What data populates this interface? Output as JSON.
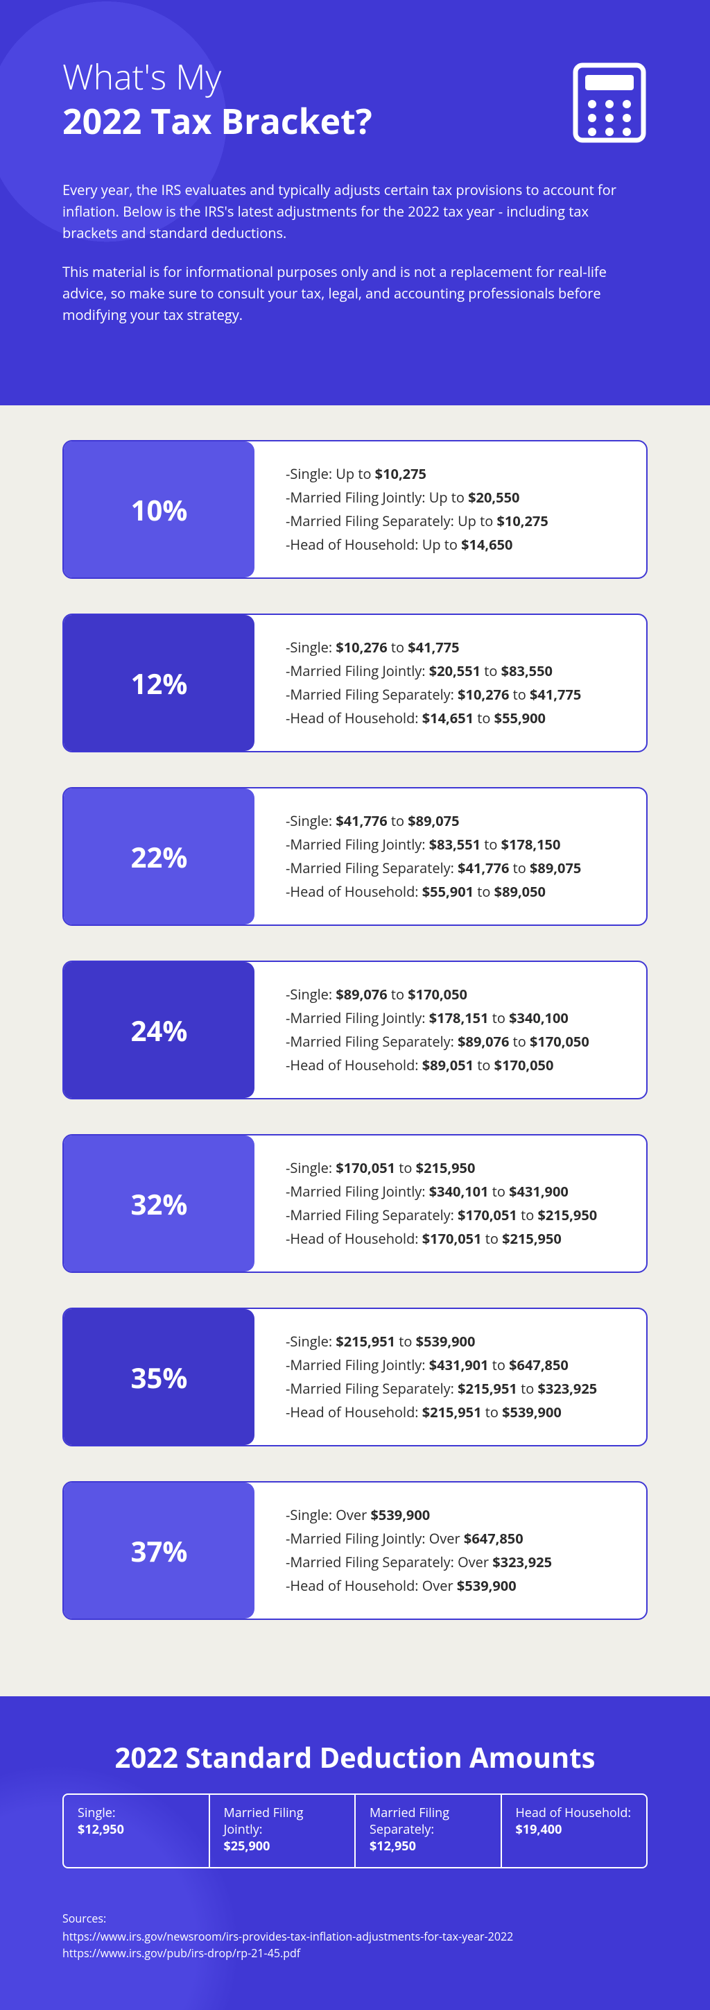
{
  "header": {
    "title_line1": "What's My",
    "title_line2": "2022 Tax Bracket?",
    "intro_p1": "Every year, the IRS evaluates and typically adjusts certain tax provisions to account for inflation. Below is the IRS's latest adjustments for the 2022 tax year - including tax brackets and standard deductions.",
    "intro_p2": "This material is for informational purposes only and is not a replacement for real-life advice, so make sure to consult your tax, legal, and accounting professionals before modifying your tax strategy."
  },
  "colors": {
    "primary": "#4038d4",
    "primary_light": "#5a55e5",
    "card_bg": "#ffffff",
    "page_bg": "#f0efe9",
    "text_dark": "#2a2a2a"
  },
  "brackets": [
    {
      "pct": "10%",
      "pct_bg": "#5a55e5",
      "lines": [
        {
          "label": "-Single: Up to ",
          "b1": "$10,275"
        },
        {
          "label": "-Married Filing Jointly: Up to ",
          "b1": "$20,550"
        },
        {
          "label": "-Married Filing Separately: Up to ",
          "b1": "$10,275"
        },
        {
          "label": "-Head of Household: Up to ",
          "b1": "$14,650"
        }
      ]
    },
    {
      "pct": "12%",
      "pct_bg": "#3f37c9",
      "lines": [
        {
          "label": "-Single: ",
          "b1": "$10,276",
          "mid": " to ",
          "b2": "$41,775"
        },
        {
          "label": "-Married Filing Jointly: ",
          "b1": "$20,551",
          "mid": " to ",
          "b2": "$83,550"
        },
        {
          "label": "-Married Filing Separately: ",
          "b1": "$10,276",
          "mid": " to ",
          "b2": "$41,775"
        },
        {
          "label": "-Head of Household: ",
          "b1": "$14,651",
          "mid": " to ",
          "b2": "$55,900"
        }
      ]
    },
    {
      "pct": "22%",
      "pct_bg": "#5a55e5",
      "lines": [
        {
          "label": "-Single: ",
          "b1": "$41,776",
          "mid": " to ",
          "b2": "$89,075"
        },
        {
          "label": "-Married Filing Jointly: ",
          "b1": "$83,551",
          "mid": " to ",
          "b2": "$178,150"
        },
        {
          "label": "-Married Filing Separately: ",
          "b1": "$41,776",
          "mid": " to ",
          "b2": "$89,075"
        },
        {
          "label": "-Head of Household: ",
          "b1": "$55,901",
          "mid": " to ",
          "b2": "$89,050"
        }
      ]
    },
    {
      "pct": "24%",
      "pct_bg": "#3f37c9",
      "lines": [
        {
          "label": "-Single: ",
          "b1": "$89,076",
          "mid": " to ",
          "b2": "$170,050"
        },
        {
          "label": "-Married Filing Jointly: ",
          "b1": "$178,151",
          "mid": " to ",
          "b2": "$340,100"
        },
        {
          "label": "-Married Filing Separately: ",
          "b1": "$89,076",
          "mid": " to ",
          "b2": "$170,050"
        },
        {
          "label": "-Head of Household: ",
          "b1": "$89,051",
          "mid": " to ",
          "b2": "$170,050"
        }
      ]
    },
    {
      "pct": "32%",
      "pct_bg": "#5a55e5",
      "lines": [
        {
          "label": "-Single: ",
          "b1": "$170,051",
          "mid": " to ",
          "b2": "$215,950"
        },
        {
          "label": "-Married Filing Jointly: ",
          "b1": "$340,101",
          "mid": " to ",
          "b2": "$431,900"
        },
        {
          "label": "-Married Filing Separately: ",
          "b1": "$170,051",
          "mid": " to ",
          "b2": "$215,950"
        },
        {
          "label": "-Head of Household: ",
          "b1": "$170,051",
          "mid": " to ",
          "b2": "$215,950"
        }
      ]
    },
    {
      "pct": "35%",
      "pct_bg": "#3f37c9",
      "lines": [
        {
          "label": "-Single: ",
          "b1": "$215,951",
          "mid": " to ",
          "b2": "$539,900"
        },
        {
          "label": "-Married Filing Jointly: ",
          "b1": "$431,901",
          "mid": " to ",
          "b2": "$647,850"
        },
        {
          "label": "-Married Filing Separately: ",
          "b1": "$215,951",
          "mid": " to ",
          "b2": "$323,925"
        },
        {
          "label": "-Head of Household: ",
          "b1": "$215,951",
          "mid": " to ",
          "b2": "$539,900"
        }
      ]
    },
    {
      "pct": "37%",
      "pct_bg": "#5a55e5",
      "lines": [
        {
          "label": "-Single: Over ",
          "b1": "$539,900"
        },
        {
          "label": "-Married Filing Jointly: Over ",
          "b1": "$647,850"
        },
        {
          "label": "-Married Filing Separately: Over ",
          "b1": "$323,925"
        },
        {
          "label": "-Head of Household: Over ",
          "b1": "$539,900"
        }
      ]
    }
  ],
  "footer": {
    "title": "2022 Standard Deduction Amounts",
    "deductions": [
      {
        "label": "Single:",
        "amount": "$12,950"
      },
      {
        "label": "Married Filing Jointly:",
        "amount": "$25,900"
      },
      {
        "label": "Married Filing Separately:",
        "amount": "$12,950"
      },
      {
        "label": "Head of Household:",
        "amount": "$19,400"
      }
    ],
    "sources_title": "Sources:",
    "sources": [
      "https://www.irs.gov/newsroom/irs-provides-tax-inflation-adjustments-for-tax-year-2022",
      "https://www.irs.gov/pub/irs-drop/rp-21-45.pdf"
    ]
  }
}
